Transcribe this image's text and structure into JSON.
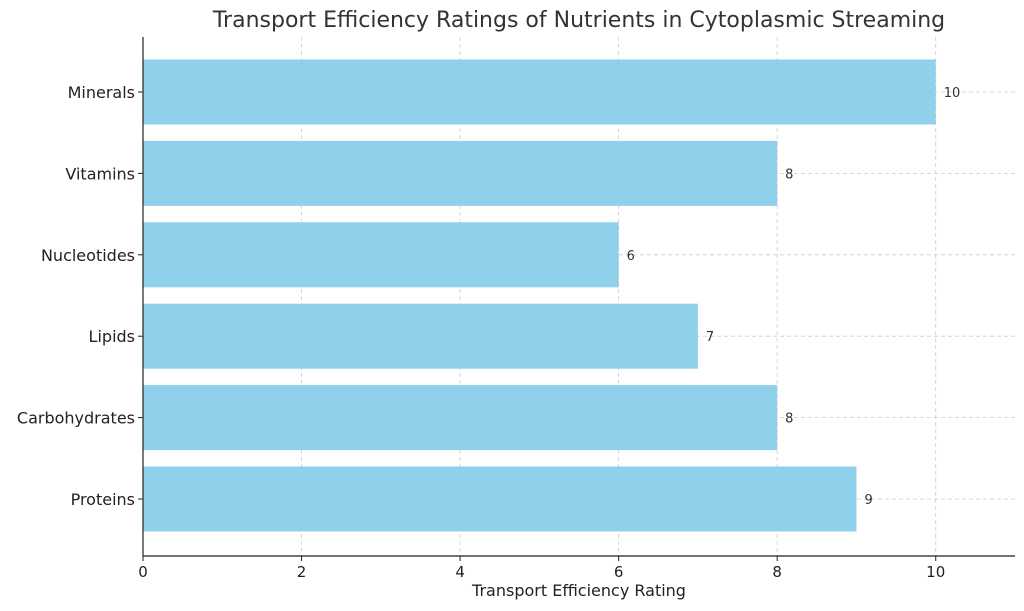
{
  "chart_data": {
    "type": "bar",
    "orientation": "horizontal",
    "title": "Transport Efficiency Ratings of Nutrients in Cytoplasmic Streaming",
    "xlabel": "Transport Efficiency Rating",
    "ylabel": "",
    "categories": [
      "Proteins",
      "Carbohydrates",
      "Lipids",
      "Nucleotides",
      "Vitamins",
      "Minerals"
    ],
    "values": [
      9,
      8,
      7,
      6,
      8,
      10
    ],
    "xlim": [
      0,
      11
    ],
    "xticks": [
      0,
      2,
      4,
      6,
      8,
      10
    ],
    "grid": true,
    "bar_color": "#89cfea",
    "data_labels": true
  }
}
